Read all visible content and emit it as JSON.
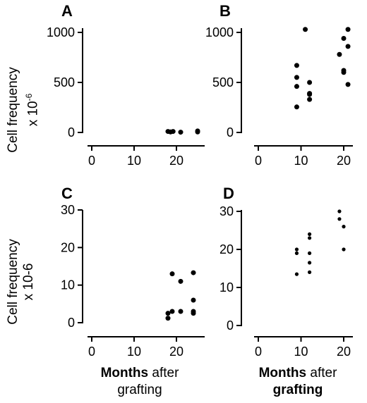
{
  "ylabel_top": {
    "line1": "Cell frequency",
    "line2_base": "x 10",
    "line2_exp": "-6"
  },
  "ylabel_bottom": {
    "line1": "Cell frequency",
    "line2": "x 10-6"
  },
  "xlabel_left": {
    "bold": "Months",
    "rest": " after",
    "line2": "grafting"
  },
  "xlabel_right": {
    "bold": "Months",
    "rest": " after",
    "line2": "grafting"
  },
  "chart_data": [
    {
      "panel": "A",
      "type": "scatter",
      "xlim": [
        0,
        25
      ],
      "ylim": [
        0,
        1000
      ],
      "xticks": [
        0,
        10,
        20
      ],
      "yticks": [
        0,
        500,
        1000
      ],
      "points": [
        [
          18,
          10
        ],
        [
          18.6,
          5
        ],
        [
          19.2,
          10
        ],
        [
          21,
          3
        ],
        [
          25,
          15
        ],
        [
          25,
          5
        ]
      ]
    },
    {
      "panel": "B",
      "type": "scatter",
      "xlim": [
        0,
        23
      ],
      "ylim": [
        0,
        1000
      ],
      "xticks": [
        0,
        10,
        20
      ],
      "yticks": [
        0,
        500,
        1000
      ],
      "points": [
        [
          9,
          670
        ],
        [
          9,
          550
        ],
        [
          9,
          460
        ],
        [
          9,
          255
        ],
        [
          11,
          1030
        ],
        [
          12,
          500
        ],
        [
          12,
          390
        ],
        [
          12,
          380
        ],
        [
          12,
          330
        ],
        [
          19,
          780
        ],
        [
          20,
          940
        ],
        [
          20,
          620
        ],
        [
          20,
          600
        ],
        [
          21,
          1030
        ],
        [
          21,
          860
        ],
        [
          21,
          480
        ]
      ]
    },
    {
      "panel": "C",
      "type": "scatter",
      "xlim": [
        0,
        25
      ],
      "ylim": [
        0,
        30
      ],
      "xticks": [
        0,
        10,
        20
      ],
      "yticks": [
        0,
        10,
        20,
        30
      ],
      "points": [
        [
          18,
          2.5
        ],
        [
          18,
          1.2
        ],
        [
          19,
          3
        ],
        [
          19,
          13
        ],
        [
          21,
          11
        ],
        [
          21,
          3
        ],
        [
          24,
          13.3
        ],
        [
          24,
          6
        ],
        [
          24,
          3
        ],
        [
          24,
          2.5
        ]
      ]
    },
    {
      "panel": "D",
      "type": "scatter",
      "xlim": [
        0,
        23
      ],
      "ylim": [
        0,
        30
      ],
      "xticks": [
        0,
        10,
        20
      ],
      "yticks": [
        0,
        10,
        20,
        30
      ],
      "points": [
        [
          9,
          20
        ],
        [
          9,
          19
        ],
        [
          9,
          13.5
        ],
        [
          12,
          24
        ],
        [
          12,
          23
        ],
        [
          12,
          19
        ],
        [
          12,
          16.5
        ],
        [
          12,
          14
        ],
        [
          19,
          30
        ],
        [
          19,
          28
        ],
        [
          20,
          26
        ],
        [
          20,
          20
        ]
      ]
    }
  ]
}
